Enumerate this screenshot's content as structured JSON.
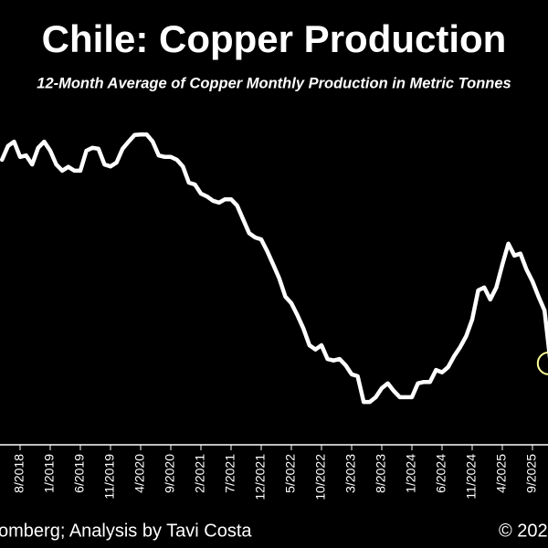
{
  "chart_data": {
    "type": "line",
    "title": "Chile: Copper Production",
    "subtitle": "12-Month Average of Copper Monthly Production in Metric Tonnes",
    "source": "omberg; Analysis by Tavi Costa",
    "copyright": "© 202",
    "color": "#ffffff",
    "highlight_color": "#ffff99",
    "categories": [
      null,
      null,
      null,
      "8/2018",
      null,
      null,
      null,
      null,
      "1/2019",
      null,
      null,
      null,
      null,
      "6/2019",
      null,
      null,
      null,
      null,
      "11/2019",
      null,
      null,
      null,
      null,
      "4/2020",
      null,
      null,
      null,
      null,
      "9/2020",
      null,
      null,
      null,
      null,
      "2/2021",
      null,
      null,
      null,
      null,
      "7/2021",
      null,
      null,
      null,
      null,
      "12/2021",
      null,
      null,
      null,
      null,
      "5/2022",
      null,
      null,
      null,
      null,
      "10/2022",
      null,
      null,
      null,
      null,
      "3/2023",
      null,
      null,
      null,
      null,
      "8/2023",
      null,
      null,
      null,
      null,
      "1/2024",
      null,
      null,
      null,
      null,
      "6/2024",
      null,
      null,
      null,
      null,
      "11/2024",
      null,
      null,
      null,
      null,
      "4/2025",
      null,
      null,
      null,
      null,
      "9/2025",
      null,
      null,
      null
    ],
    "values": [
      485.4,
      488.3,
      489.2,
      486.0,
      486.3,
      484.4,
      487.9,
      489.2,
      487.3,
      484.4,
      483.1,
      483.9,
      483.1,
      483.1,
      487.3,
      487.9,
      487.7,
      484.4,
      484.0,
      484.8,
      487.7,
      489.2,
      490.6,
      490.7,
      490.7,
      489.2,
      486.3,
      486.0,
      486.0,
      485.4,
      484.0,
      480.6,
      480.2,
      478.3,
      477.7,
      476.8,
      476.4,
      477.1,
      477.1,
      475.8,
      472.9,
      470.0,
      469.1,
      468.7,
      466.2,
      463.4,
      460.5,
      456.7,
      455.3,
      452.8,
      450.0,
      446.5,
      445.6,
      446.5,
      443.6,
      443.3,
      443.6,
      442.3,
      440.4,
      440.0,
      434.6,
      434.6,
      435.6,
      437.5,
      438.5,
      436.9,
      435.6,
      435.6,
      435.6,
      438.5,
      438.8,
      438.8,
      441.3,
      440.8,
      441.9,
      444.2,
      446.1,
      448.4,
      451.9,
      458.0,
      458.6,
      456.1,
      458.6,
      463.4,
      467.8,
      465.3,
      465.7,
      462.4,
      459.9,
      456.7,
      453.8,
      442.7
    ],
    "ylim": [
      426,
      494
    ]
  }
}
